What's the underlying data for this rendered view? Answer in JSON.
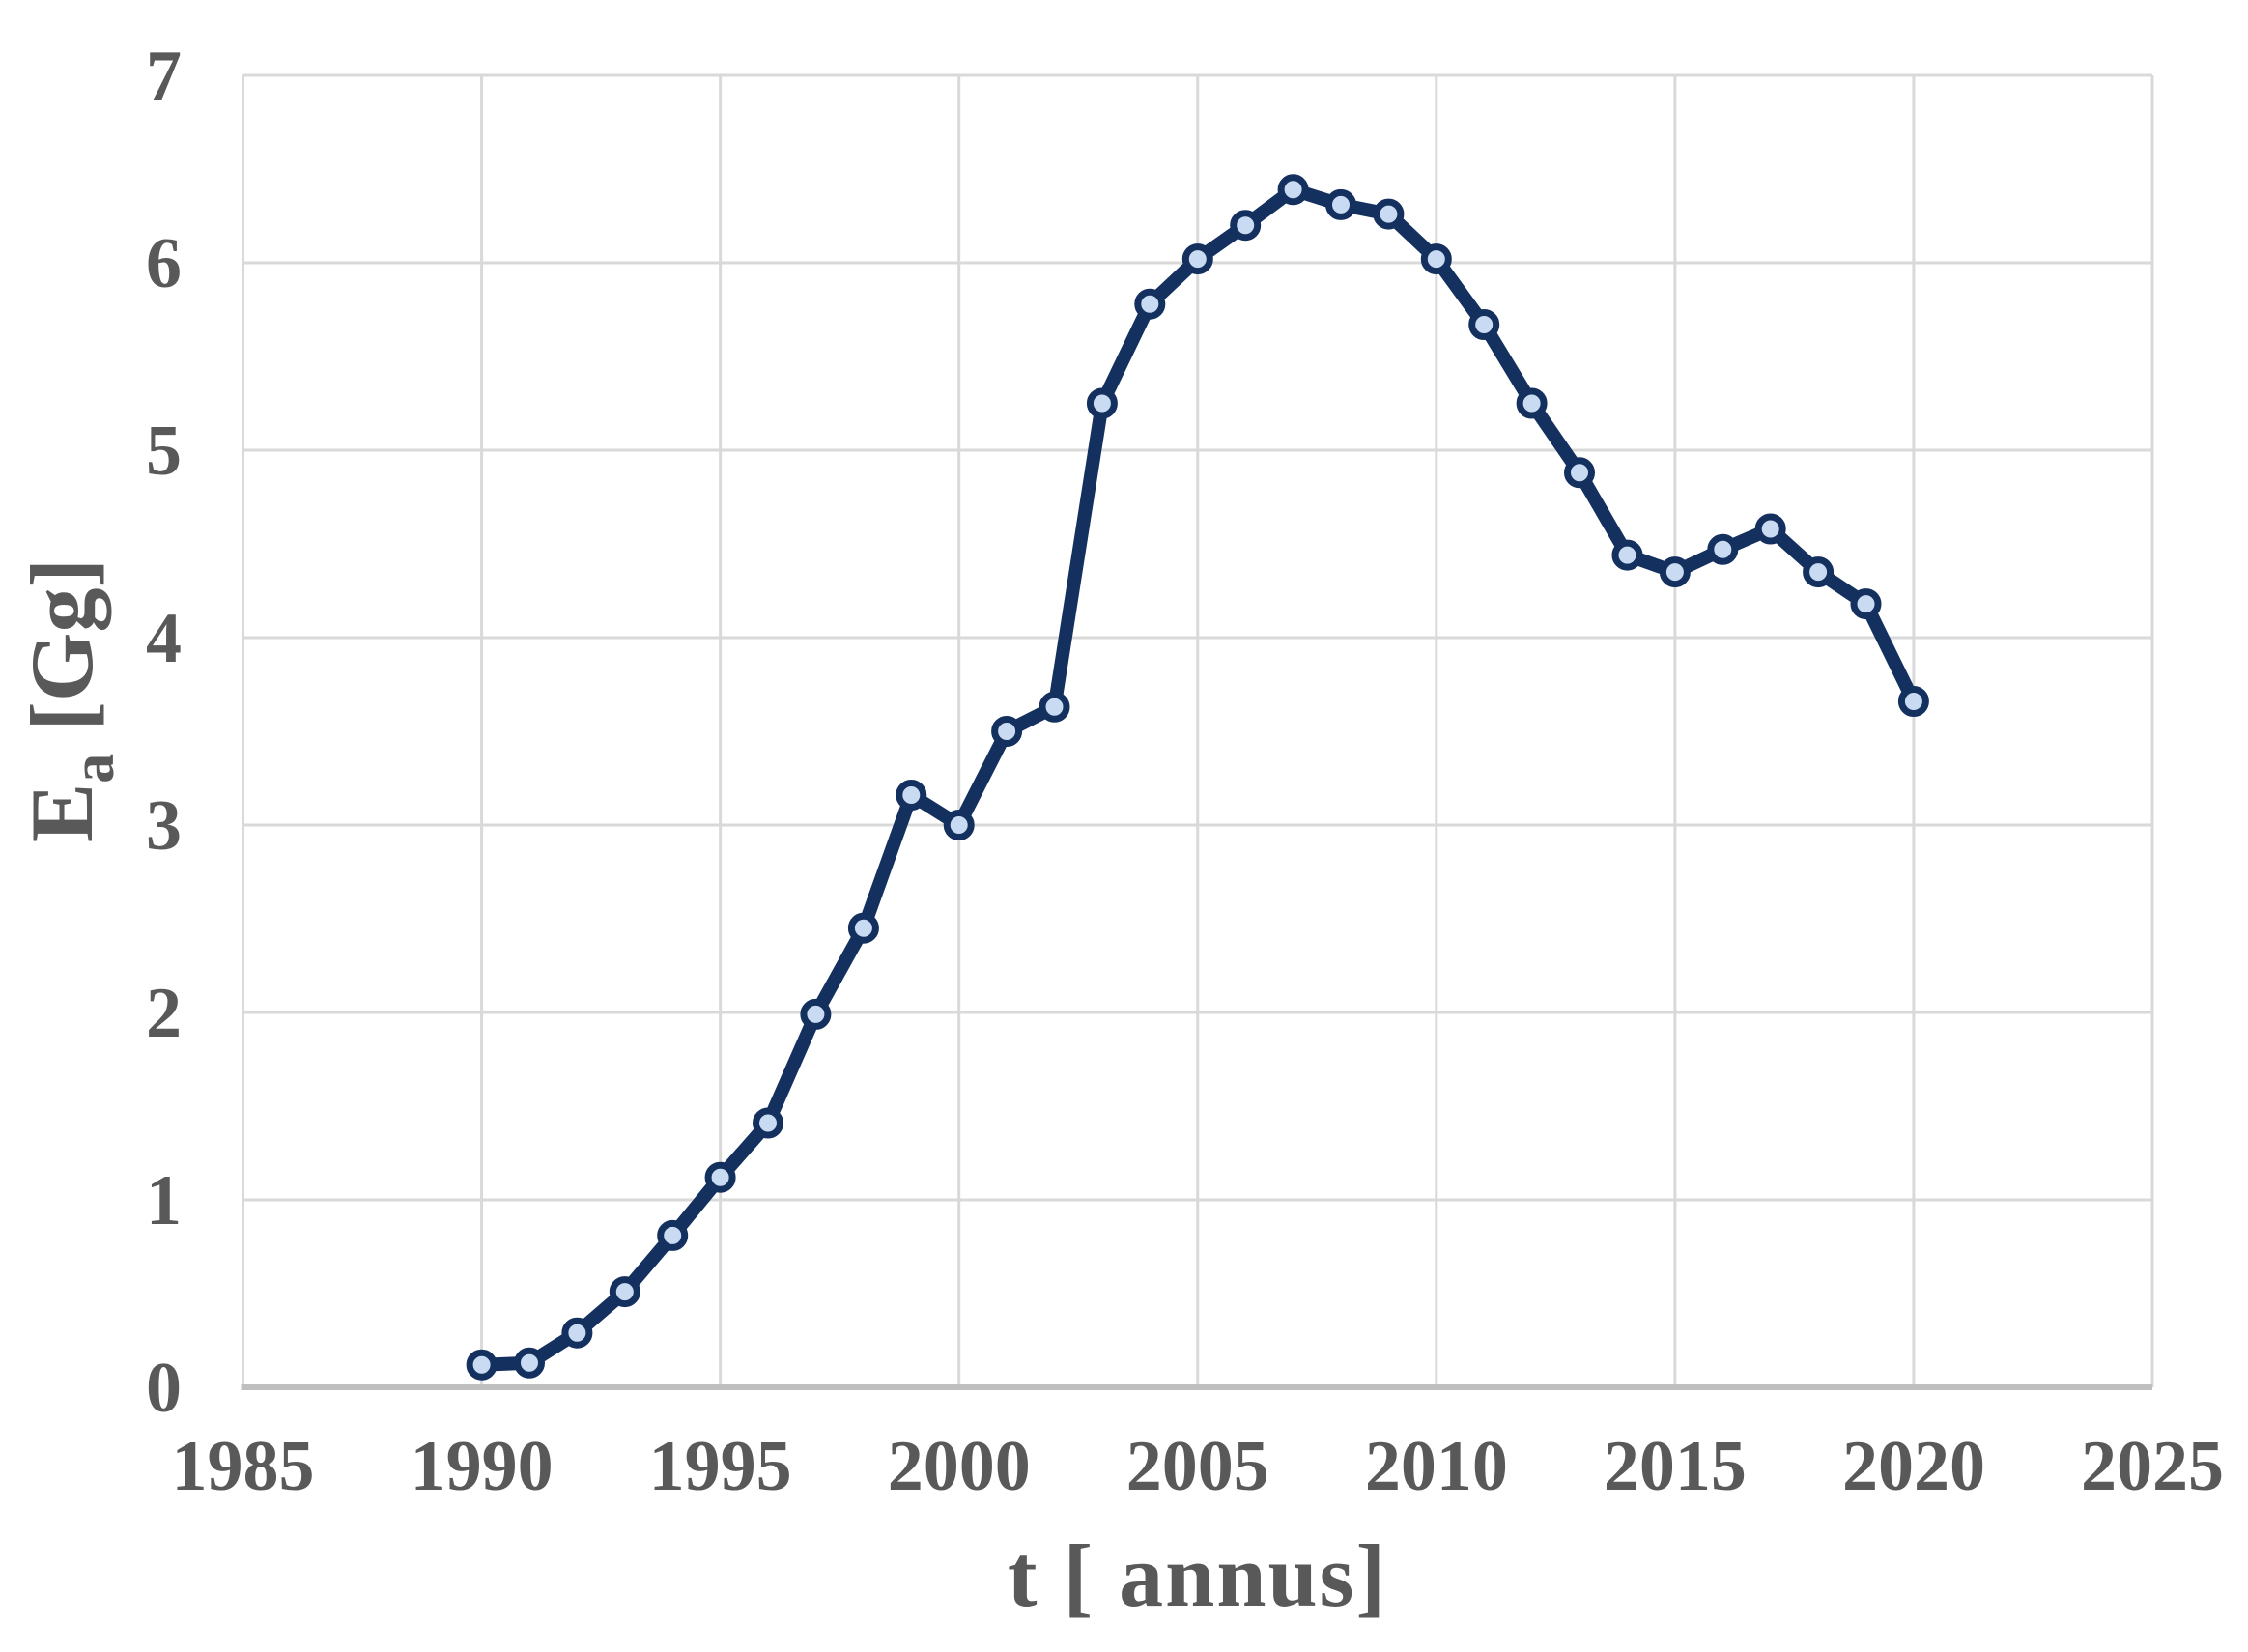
{
  "chart_data": {
    "type": "line",
    "title": "",
    "xlabel": "t [ annus]",
    "ylabel": {
      "symbol": "E",
      "subscript": "a",
      "unit": " [Gg]"
    },
    "x": [
      1990,
      1991,
      1992,
      1993,
      1994,
      1995,
      1996,
      1997,
      1998,
      1999,
      2000,
      2001,
      2002,
      2003,
      2004,
      2005,
      2006,
      2007,
      2008,
      2009,
      2010,
      2011,
      2012,
      2013,
      2014,
      2015,
      2016,
      2017,
      2018,
      2019,
      2020
    ],
    "values": [
      0.12,
      0.13,
      0.29,
      0.51,
      0.81,
      1.12,
      1.41,
      1.99,
      2.45,
      3.16,
      3.0,
      3.5,
      3.63,
      5.25,
      5.78,
      6.02,
      6.2,
      6.39,
      6.31,
      6.26,
      6.02,
      5.67,
      5.25,
      4.88,
      4.44,
      4.35,
      4.47,
      4.58,
      4.35,
      4.18,
      3.66
    ],
    "xlim": [
      1985,
      2025
    ],
    "ylim": [
      0,
      7
    ],
    "x_ticks": [
      1985,
      1990,
      1995,
      2000,
      2005,
      2010,
      2015,
      2020,
      2025
    ],
    "y_ticks": [
      0,
      1,
      2,
      3,
      4,
      5,
      6,
      7
    ],
    "grid": true,
    "legend": "none",
    "colors": {
      "line": "#14305E",
      "marker_fill": "#C8DBF2",
      "marker_stroke": "#14305E",
      "gridline": "#D9D9D9",
      "axis_line": "#BFBFBF",
      "label_text": "#595959",
      "background": "#FFFFFF"
    }
  }
}
